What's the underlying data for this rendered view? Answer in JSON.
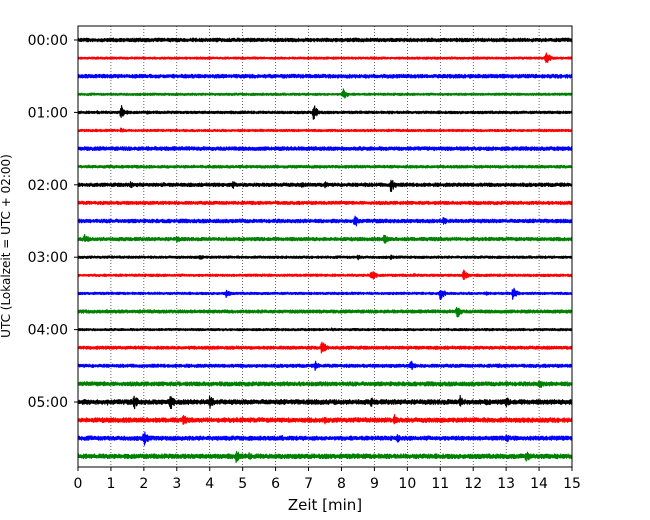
{
  "chart_data": {
    "type": "line",
    "title": "",
    "xlabel": "Zeit  [min]",
    "ylabel": "UTC (Lokalzeit = UTC + 02:00)",
    "xlim": [
      0,
      15
    ],
    "x_ticks": [
      0,
      1,
      2,
      3,
      4,
      5,
      6,
      7,
      8,
      9,
      10,
      11,
      12,
      13,
      14,
      15
    ],
    "y_tick_labels": [
      "00:00",
      "01:00",
      "02:00",
      "03:00",
      "04:00",
      "05:00"
    ],
    "trace_minutes": 15,
    "traces_per_hour": 4,
    "grid": "vertical-dotted",
    "color_cycle": [
      "#000000",
      "#ff0000",
      "#0000ff",
      "#008000"
    ],
    "series": [
      {
        "start": "00:00",
        "color": "#000000",
        "events": [
          [
            11.4,
            0.15
          ]
        ]
      },
      {
        "start": "00:15",
        "color": "#ff0000",
        "events": [
          [
            14.2,
            0.8
          ],
          [
            12.1,
            0.15
          ]
        ]
      },
      {
        "start": "00:30",
        "color": "#0000ff",
        "events": []
      },
      {
        "start": "00:45",
        "color": "#008000",
        "events": [
          [
            8.05,
            0.6
          ],
          [
            14.1,
            0.12
          ]
        ]
      },
      {
        "start": "01:00",
        "color": "#000000",
        "events": [
          [
            1.3,
            0.85
          ],
          [
            7.15,
            0.85
          ],
          [
            0.6,
            0.25
          ],
          [
            2.1,
            0.2
          ]
        ]
      },
      {
        "start": "01:15",
        "color": "#ff0000",
        "events": [
          [
            1.3,
            0.3
          ],
          [
            7.6,
            0.15
          ]
        ]
      },
      {
        "start": "01:30",
        "color": "#0000ff",
        "events": [
          [
            9.2,
            0.2
          ],
          [
            12.0,
            0.15
          ]
        ]
      },
      {
        "start": "01:45",
        "color": "#008000",
        "events": [
          [
            4.3,
            0.15
          ],
          [
            10.8,
            0.12
          ]
        ]
      },
      {
        "start": "02:00",
        "color": "#000000",
        "events": [
          [
            9.5,
            0.8
          ],
          [
            1.6,
            0.4
          ],
          [
            4.7,
            0.45
          ],
          [
            6.8,
            0.3
          ],
          [
            7.5,
            0.35
          ],
          [
            8.7,
            0.3
          ],
          [
            2.6,
            0.25
          ],
          [
            11.0,
            0.2
          ]
        ]
      },
      {
        "start": "02:15",
        "color": "#ff0000",
        "events": [
          [
            3.2,
            0.15
          ],
          [
            5.1,
            0.15
          ],
          [
            9.0,
            0.12
          ]
        ]
      },
      {
        "start": "02:30",
        "color": "#0000ff",
        "events": [
          [
            8.4,
            0.75
          ],
          [
            11.1,
            0.5
          ],
          [
            13.5,
            0.25
          ],
          [
            7.5,
            0.2
          ]
        ]
      },
      {
        "start": "02:45",
        "color": "#008000",
        "events": [
          [
            0.2,
            0.55
          ],
          [
            3.0,
            0.4
          ],
          [
            9.3,
            0.6
          ],
          [
            4.5,
            0.25
          ],
          [
            12.5,
            0.2
          ]
        ]
      },
      {
        "start": "03:00",
        "color": "#000000",
        "events": [
          [
            3.7,
            0.35
          ],
          [
            8.5,
            0.3
          ],
          [
            9.5,
            0.25
          ],
          [
            2.2,
            0.2
          ]
        ]
      },
      {
        "start": "03:15",
        "color": "#ff0000",
        "events": [
          [
            8.9,
            0.7
          ],
          [
            11.7,
            0.65
          ],
          [
            10.2,
            0.2
          ],
          [
            2.4,
            0.2
          ]
        ]
      },
      {
        "start": "03:30",
        "color": "#0000ff",
        "events": [
          [
            11.0,
            0.75
          ],
          [
            13.2,
            0.7
          ],
          [
            4.5,
            0.45
          ],
          [
            12.4,
            0.2
          ]
        ]
      },
      {
        "start": "03:45",
        "color": "#008000",
        "events": [
          [
            11.5,
            0.8
          ]
        ]
      },
      {
        "start": "04:00",
        "color": "#000000",
        "events": [
          [
            7.7,
            0.2
          ],
          [
            12.5,
            0.18
          ]
        ]
      },
      {
        "start": "04:15",
        "color": "#ff0000",
        "events": [
          [
            7.4,
            0.85
          ],
          [
            10.4,
            0.2
          ]
        ]
      },
      {
        "start": "04:30",
        "color": "#0000ff",
        "events": [
          [
            7.2,
            0.5
          ],
          [
            10.1,
            0.6
          ],
          [
            12.8,
            0.2
          ]
        ]
      },
      {
        "start": "04:45",
        "color": "#008000",
        "events": [
          [
            14.0,
            0.6
          ],
          [
            13.0,
            0.3
          ],
          [
            2.5,
            0.2
          ],
          [
            5.5,
            0.2
          ]
        ]
      },
      {
        "start": "05:00",
        "color": "#000000",
        "events": [
          [
            2.8,
            0.9
          ],
          [
            4.0,
            0.85
          ],
          [
            1.7,
            0.8
          ],
          [
            11.6,
            0.75
          ],
          [
            13.0,
            0.6
          ],
          [
            8.9,
            0.55
          ],
          [
            3.3,
            0.4
          ],
          [
            12.4,
            0.4
          ],
          [
            5.5,
            0.3
          ],
          [
            0.9,
            0.3
          ]
        ]
      },
      {
        "start": "05:15",
        "color": "#ff0000",
        "events": [
          [
            3.2,
            0.6
          ],
          [
            9.6,
            0.7
          ],
          [
            7.5,
            0.4
          ],
          [
            1.2,
            0.3
          ],
          [
            11.5,
            0.25
          ],
          [
            5.0,
            0.25
          ]
        ]
      },
      {
        "start": "05:30",
        "color": "#0000ff",
        "events": [
          [
            2.0,
            0.85
          ],
          [
            9.7,
            0.45
          ],
          [
            13.0,
            0.5
          ],
          [
            6.2,
            0.3
          ],
          [
            4.1,
            0.25
          ],
          [
            8.6,
            0.2
          ]
        ]
      },
      {
        "start": "05:45",
        "color": "#008000",
        "events": [
          [
            4.8,
            0.7
          ],
          [
            13.6,
            0.65
          ],
          [
            5.2,
            0.4
          ],
          [
            2.6,
            0.3
          ],
          [
            9.0,
            0.3
          ],
          [
            11.0,
            0.25
          ]
        ]
      }
    ]
  }
}
